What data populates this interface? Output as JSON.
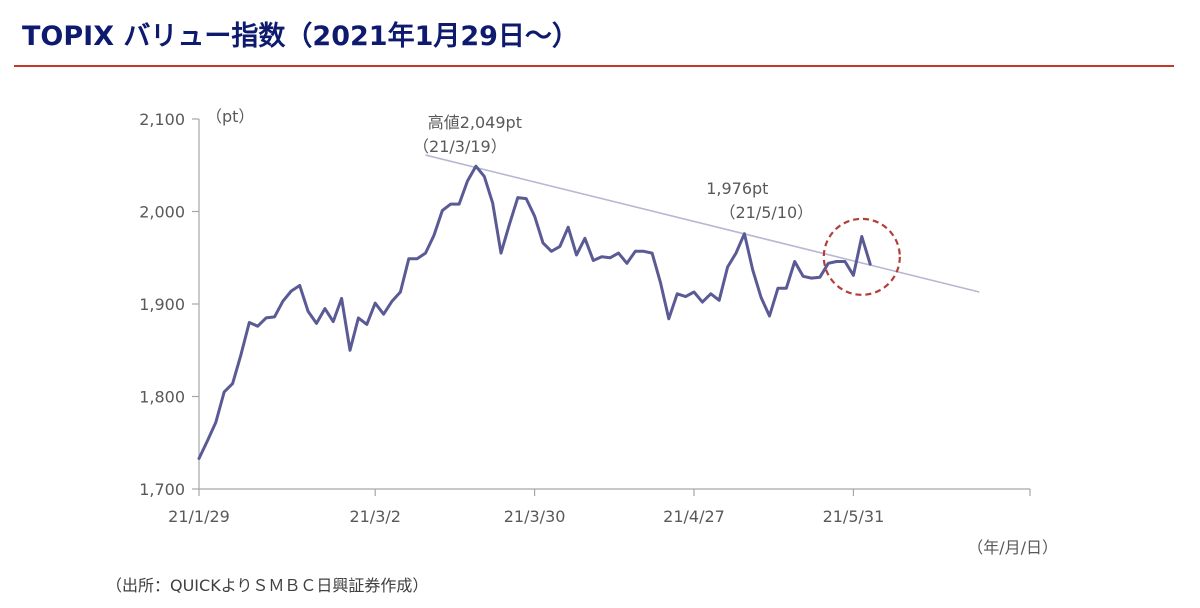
{
  "title": "TOPIX バリュー指数（2021年1月29日～）",
  "source": "（出所：QUICKよりＳＭＢＣ日興証券作成）",
  "colors": {
    "title": "#0d1a6e",
    "title_rule": "#c0392b",
    "series_line": "#5a5a94",
    "trend_line": "#b7b7d6",
    "highlight_circle": "#b2403a"
  },
  "chart_data": {
    "type": "line",
    "ylabel": "（pt）",
    "xlabel": "（年/月/日）",
    "ylim": [
      1700,
      2100
    ],
    "yticks": [
      1700,
      1800,
      1900,
      2000,
      2100
    ],
    "ytick_labels": [
      "1,700",
      "1,800",
      "1,900",
      "2,000",
      "2,100"
    ],
    "xticks": [
      {
        "label": "21/1/29",
        "index": 0
      },
      {
        "label": "21/3/2",
        "index": 21
      },
      {
        "label": "21/3/30",
        "index": 40
      },
      {
        "label": "21/4/27",
        "index": 59
      },
      {
        "label": "21/5/31",
        "index": 78
      }
    ],
    "grid": false,
    "series": [
      {
        "values": [
          1733,
          1752,
          1772,
          1805,
          1814,
          1845,
          1880,
          1876,
          1885,
          1886,
          1903,
          1914,
          1920,
          1892,
          1879,
          1895,
          1881,
          1906,
          1850,
          1885,
          1878,
          1901,
          1889,
          1903,
          1913,
          1949,
          1949,
          1955,
          1974,
          2001,
          2008,
          2008,
          2033,
          2049,
          2038,
          2009,
          1955,
          1986,
          2015,
          2014,
          1995,
          1966,
          1957,
          1962,
          1983,
          1953,
          1971,
          1947,
          1951,
          1950,
          1955,
          1944,
          1957,
          1957,
          1955,
          1923,
          1884,
          1911,
          1908,
          1913,
          1902,
          1911,
          1904,
          1940,
          1955,
          1976,
          1937,
          1907,
          1887,
          1917,
          1917,
          1946,
          1930,
          1928,
          1929,
          1944,
          1946,
          1946,
          1931,
          1973,
          1943
        ]
      }
    ],
    "trendline": {
      "start": {
        "index": 27,
        "value": 2061
      },
      "end": {
        "index": 93,
        "value": 1913
      }
    },
    "annotations": [
      {
        "index": 33,
        "value": 2049,
        "label": "高値2,049pt",
        "date_label": "（21/3/19）"
      },
      {
        "index": 65,
        "value": 1976,
        "label": "1,976pt",
        "date_label": "（21/5/10）"
      }
    ],
    "highlight": {
      "index": 79,
      "value": 1951,
      "style": "dashed-circle"
    }
  }
}
